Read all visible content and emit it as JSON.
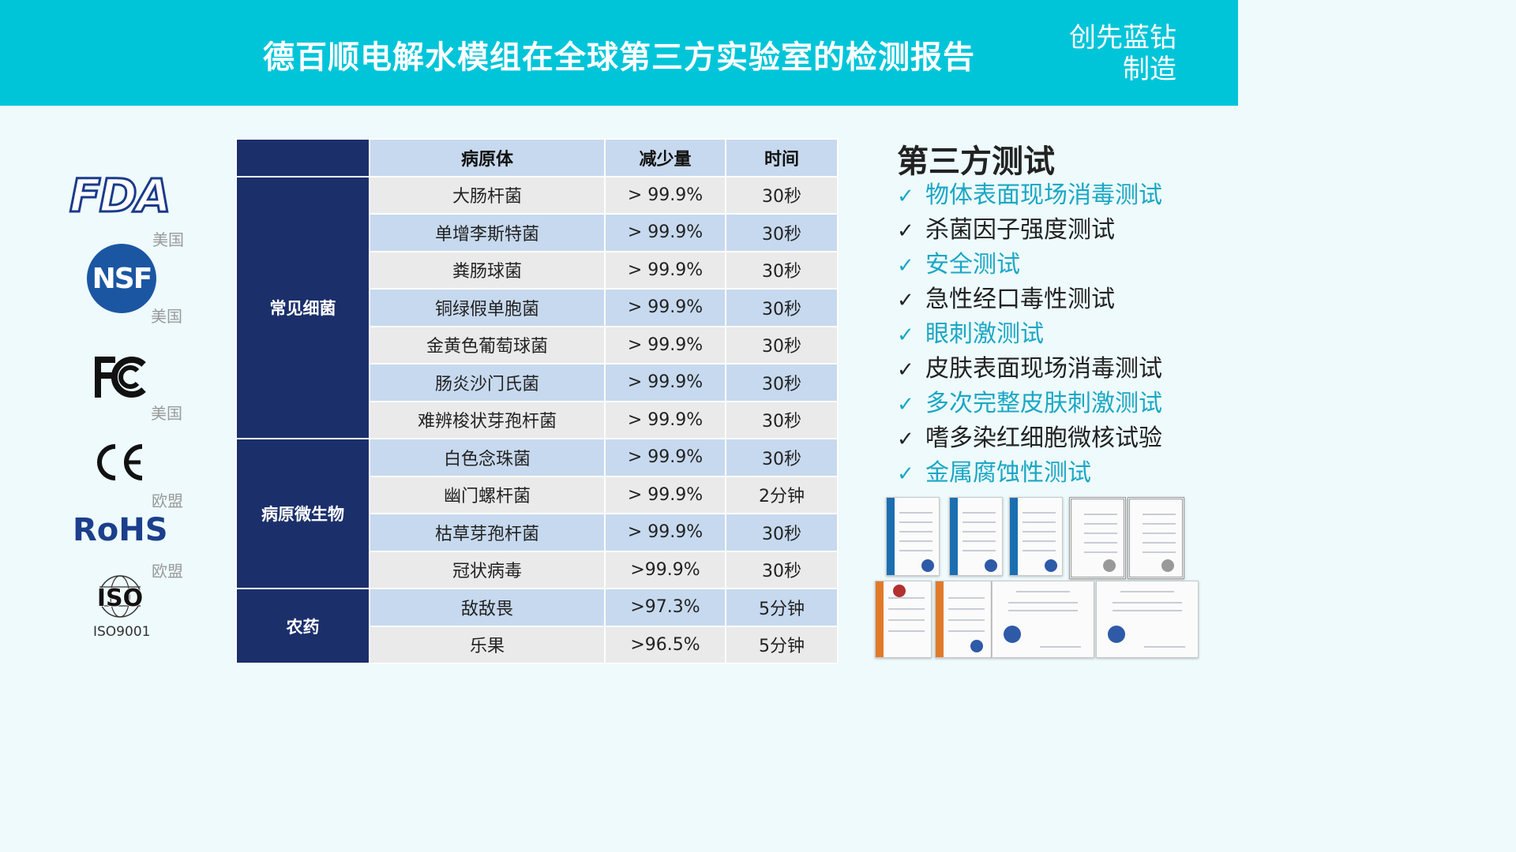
{
  "header": {
    "title": "德百顺电解水模组在全球第三方实验室的检测报告",
    "brand_line1": "创先蓝钻",
    "brand_line2": "制造",
    "color": "#00c5d9"
  },
  "logos": [
    {
      "name": "FDA",
      "region": "美国"
    },
    {
      "name": "NSF",
      "region": "美国"
    },
    {
      "name": "FC",
      "region": "美国"
    },
    {
      "name": "CE",
      "region": "欧盟"
    },
    {
      "name": "RoHS",
      "region": "欧盟"
    },
    {
      "name": "ISO",
      "label": "ISO9001"
    }
  ],
  "table": {
    "headers": [
      "病原体",
      "减少量",
      "时间"
    ],
    "groups": [
      {
        "category": "常见细菌",
        "rows": [
          [
            "大肠杆菌",
            "> 99.9%",
            "30秒"
          ],
          [
            "单增李斯特菌",
            "> 99.9%",
            "30秒"
          ],
          [
            "粪肠球菌",
            "> 99.9%",
            "30秒"
          ],
          [
            "铜绿假单胞菌",
            "> 99.9%",
            "30秒"
          ],
          [
            "金黄色葡萄球菌",
            "> 99.9%",
            "30秒"
          ],
          [
            "肠炎沙门氏菌",
            "> 99.9%",
            "30秒"
          ],
          [
            "难辨梭状芽孢杆菌",
            "> 99.9%",
            "30秒"
          ]
        ]
      },
      {
        "category": "病原微生物",
        "rows": [
          [
            "白色念珠菌",
            "> 99.9%",
            "30秒"
          ],
          [
            "幽门螺杆菌",
            "> 99.9%",
            "2分钟"
          ],
          [
            "枯草芽孢杆菌",
            "> 99.9%",
            "30秒"
          ],
          [
            "冠状病毒",
            ">99.9%",
            "30秒"
          ]
        ]
      },
      {
        "category": "农药",
        "rows": [
          [
            "敌敌畏",
            ">97.3%",
            "5分钟"
          ],
          [
            "乐果",
            ">96.5%",
            "5分钟"
          ]
        ]
      }
    ]
  },
  "tests": {
    "title": "第三方测试",
    "items": [
      {
        "label": "物体表面现场消毒测试",
        "style": "teal"
      },
      {
        "label": "杀菌因子强度测试",
        "style": "dark"
      },
      {
        "label": "安全测试",
        "style": "teal"
      },
      {
        "label": "急性经口毒性测试",
        "style": "dark"
      },
      {
        "label": "眼刺激测试",
        "style": "teal"
      },
      {
        "label": "皮肤表面现场消毒测试",
        "style": "dark"
      },
      {
        "label": "多次完整皮肤刺激测试",
        "style": "teal"
      },
      {
        "label": "嗜多染红细胞微核试验",
        "style": "dark"
      },
      {
        "label": "金属腐蚀性测试",
        "style": "teal"
      }
    ],
    "check_glyph": "✓"
  }
}
